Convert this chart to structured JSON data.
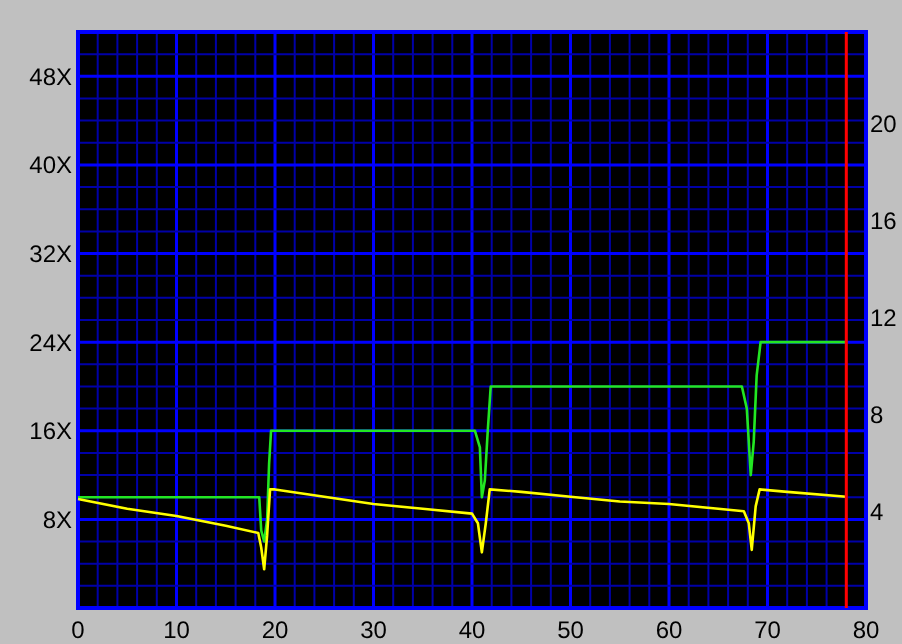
{
  "chart_data": {
    "type": "line",
    "xlim": [
      0,
      80
    ],
    "ylim": [
      0,
      52
    ],
    "y2lim": [
      0,
      23.8
    ],
    "xticks": [
      0,
      {
        "value": 2,
        "label": null
      },
      {
        "value": 4,
        "label": null
      },
      {
        "value": 6,
        "label": null
      },
      {
        "value": 8,
        "label": null
      },
      10,
      {
        "value": 12,
        "label": null
      },
      {
        "value": 14,
        "label": null
      },
      {
        "value": 16,
        "label": null
      },
      {
        "value": 18,
        "label": null
      },
      20,
      {
        "value": 22,
        "label": null
      },
      {
        "value": 24,
        "label": null
      },
      {
        "value": 26,
        "label": null
      },
      {
        "value": 28,
        "label": null
      },
      30,
      {
        "value": 32,
        "label": null
      },
      {
        "value": 34,
        "label": null
      },
      {
        "value": 36,
        "label": null
      },
      {
        "value": 38,
        "label": null
      },
      40,
      {
        "value": 42,
        "label": null
      },
      {
        "value": 44,
        "label": null
      },
      {
        "value": 46,
        "label": null
      },
      {
        "value": 48,
        "label": null
      },
      50,
      {
        "value": 52,
        "label": null
      },
      {
        "value": 54,
        "label": null
      },
      {
        "value": 56,
        "label": null
      },
      {
        "value": 58,
        "label": null
      },
      60,
      {
        "value": 62,
        "label": null
      },
      {
        "value": 64,
        "label": null
      },
      {
        "value": 66,
        "label": null
      },
      {
        "value": 68,
        "label": null
      },
      70,
      {
        "value": 72,
        "label": null
      },
      {
        "value": 74,
        "label": null
      },
      {
        "value": 76,
        "label": null
      },
      {
        "value": 78,
        "label": null
      },
      80
    ],
    "yticks": [
      {
        "value": 2,
        "label": null
      },
      {
        "value": 4,
        "label": null
      },
      {
        "value": 6,
        "label": null
      },
      {
        "value": 8,
        "label": "8X"
      },
      {
        "value": 10,
        "label": null
      },
      {
        "value": 12,
        "label": null
      },
      {
        "value": 14,
        "label": null
      },
      {
        "value": 16,
        "label": "16X"
      },
      {
        "value": 18,
        "label": null
      },
      {
        "value": 20,
        "label": null
      },
      {
        "value": 22,
        "label": null
      },
      {
        "value": 24,
        "label": "24X"
      },
      {
        "value": 26,
        "label": null
      },
      {
        "value": 28,
        "label": null
      },
      {
        "value": 30,
        "label": null
      },
      {
        "value": 32,
        "label": "32X"
      },
      {
        "value": 34,
        "label": null
      },
      {
        "value": 36,
        "label": null
      },
      {
        "value": 38,
        "label": null
      },
      {
        "value": 40,
        "label": "40X"
      },
      {
        "value": 42,
        "label": null
      },
      {
        "value": 44,
        "label": null
      },
      {
        "value": 46,
        "label": null
      },
      {
        "value": 48,
        "label": "48X"
      },
      {
        "value": 50,
        "label": null
      }
    ],
    "y2ticks": [
      4,
      8,
      12,
      16,
      20
    ],
    "grid": true,
    "marker": "none",
    "line_style": "solid",
    "ref_lines": [
      {
        "axis": "x",
        "value": 78,
        "color": "#ff0000"
      }
    ],
    "series": [
      {
        "color": "#22e622",
        "x": [
          0,
          18.4,
          18.6,
          18.9,
          19.2,
          19.4,
          19.6,
          40.3,
          40.8,
          41.0,
          41.3,
          41.6,
          41.9,
          67.4,
          67.9,
          68.3,
          68.6,
          68.9,
          69.3,
          78
        ],
        "values": [
          10,
          10,
          7,
          6,
          8,
          13,
          16,
          16,
          14.5,
          10,
          11.5,
          16,
          20,
          20,
          18,
          12,
          15,
          21,
          24,
          24
        ]
      },
      {
        "color": "#ffff00",
        "axis": "y2",
        "x": [
          0,
          5,
          10,
          15,
          18.3,
          18.6,
          18.9,
          19.2,
          19.5,
          20,
          25,
          30,
          35,
          40,
          40.6,
          41,
          41.4,
          41.8,
          45,
          50,
          55,
          60,
          65,
          67.6,
          68.1,
          68.4,
          68.8,
          69.2,
          72,
          78
        ],
        "values": [
          4.5,
          4.1,
          3.8,
          3.4,
          3.1,
          2.5,
          1.6,
          3,
          4.9,
          4.9,
          4.6,
          4.3,
          4.1,
          3.9,
          3.5,
          2.3,
          3.5,
          4.9,
          4.8,
          4.6,
          4.4,
          4.3,
          4.1,
          4.0,
          3.5,
          2.4,
          4.2,
          4.9,
          4.8,
          4.6
        ]
      }
    ]
  }
}
